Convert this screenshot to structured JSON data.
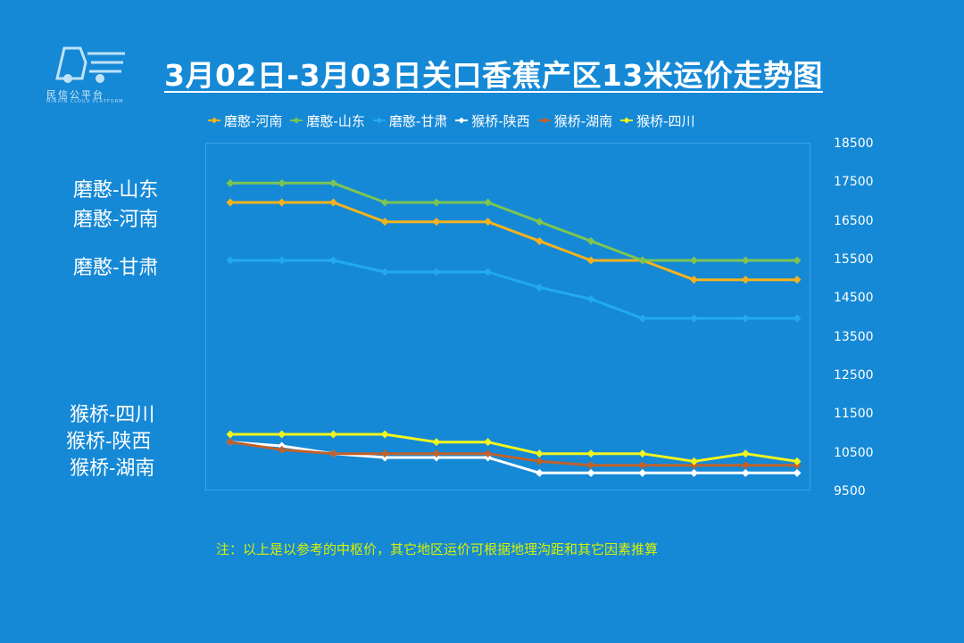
{
  "header": {
    "title": "3月02日-3月03日关口香蕉产区13米运价走势图",
    "logo_text": "民信公平台",
    "logo_sub": "MINXIN CLOUD PLATFORM"
  },
  "note": "注：以上是以参考的中枢价，其它地区运价可根据地理沟距和其它因素推算",
  "side_labels": [
    "磨憨-山东",
    "磨憨-河南",
    "磨憨-甘肃",
    "猴桥-四川",
    "猴桥-陕西",
    "猴桥-湖南"
  ],
  "chart_data": {
    "type": "line",
    "title": "3月02日-3月03日关口香蕉产区13米运价走势图",
    "xlabel": "",
    "ylabel": "",
    "ylim": [
      9500,
      18500
    ],
    "yticks": [
      18500,
      17500,
      16500,
      15500,
      14500,
      13500,
      12500,
      11500,
      10500,
      9500
    ],
    "x": [
      1,
      2,
      3,
      4,
      5,
      6,
      7,
      8,
      9,
      10,
      11,
      12
    ],
    "legend_position": "top",
    "series": [
      {
        "name": "磨憨-河南",
        "color": "#f5b21c",
        "values": [
          17000,
          17000,
          17000,
          16500,
          16500,
          16500,
          16000,
          15500,
          15500,
          15000,
          15000,
          15000
        ]
      },
      {
        "name": "磨憨-山东",
        "color": "#7cc552",
        "values": [
          17500,
          17500,
          17500,
          17000,
          17000,
          17000,
          16500,
          16000,
          15500,
          15500,
          15500,
          15500
        ]
      },
      {
        "name": "磨憨-甘肃",
        "color": "#22aaee",
        "values": [
          15500,
          15500,
          15500,
          15200,
          15200,
          15200,
          14800,
          14500,
          14000,
          14000,
          14000,
          14000
        ]
      },
      {
        "name": "猴桥-陕西",
        "color": "#ffffff",
        "values": [
          10800,
          10700,
          10500,
          10400,
          10400,
          10400,
          10000,
          10000,
          10000,
          10000,
          10000,
          10000
        ]
      },
      {
        "name": "猴桥-湖南",
        "color": "#c0612b",
        "values": [
          10800,
          10600,
          10500,
          10500,
          10500,
          10500,
          10300,
          10200,
          10200,
          10200,
          10200,
          10200
        ]
      },
      {
        "name": "猴桥-四川",
        "color": "#f2f51e",
        "values": [
          11000,
          11000,
          11000,
          11000,
          10800,
          10800,
          10500,
          10500,
          10500,
          10300,
          10500,
          10300
        ]
      }
    ]
  }
}
